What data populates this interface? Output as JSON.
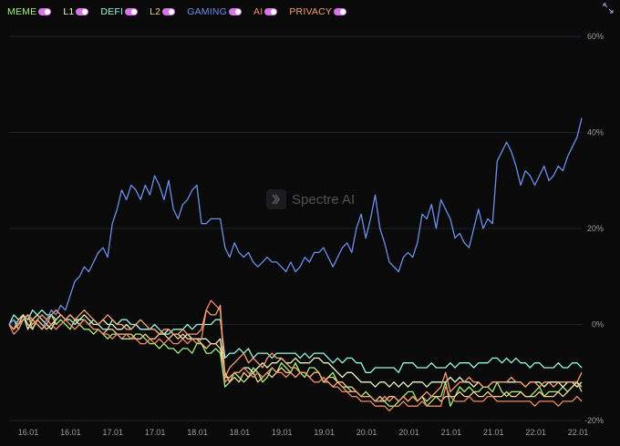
{
  "chart_data": {
    "type": "line",
    "x_ticks": [
      "16.01",
      "16.01",
      "17.01",
      "17.01",
      "18.01",
      "18.01",
      "19.01",
      "19.01",
      "20.01",
      "20.01",
      "21.01",
      "21.01",
      "22.01",
      "22.01"
    ],
    "y_ticks": [
      "60%",
      "40%",
      "20%",
      "0%",
      "-20%"
    ],
    "ylim": [
      -20,
      60
    ],
    "grid": "horizontal",
    "legend_position": "top-left",
    "series": [
      {
        "name": "MEME",
        "color": "#a3f07a",
        "toggle_on": true,
        "values": [
          0,
          1,
          -1,
          1,
          2,
          -1,
          1,
          2,
          1,
          2,
          0,
          1,
          0,
          -1,
          1,
          0,
          -1,
          -1,
          -2,
          -1,
          -2,
          -3,
          -2,
          -2,
          -3,
          -3,
          -3,
          -2,
          -2,
          -3,
          -4,
          -4,
          -5,
          -4,
          -5,
          -5,
          -6,
          -5,
          -5,
          -6,
          -4,
          -4,
          -6,
          -6,
          -5,
          -6,
          -13,
          -12,
          -10,
          -11,
          -12,
          -11,
          -9,
          -10,
          -12,
          -11,
          -9,
          -10,
          -8,
          -9,
          -10,
          -8,
          -10,
          -11,
          -9,
          -9,
          -10,
          -12,
          -11,
          -10,
          -12,
          -13,
          -13,
          -14,
          -14,
          -15,
          -14,
          -15,
          -16,
          -16,
          -16,
          -17,
          -17,
          -16,
          -15,
          -14,
          -14,
          -16,
          -15,
          -17,
          -16,
          -15,
          -15,
          -12,
          -17,
          -15,
          -13,
          -14,
          -13,
          -14,
          -14,
          -13,
          -13,
          -14,
          -12,
          -14,
          -15,
          -14,
          -14,
          -14,
          -15,
          -15,
          -14,
          -13,
          -15,
          -14,
          -14,
          -14,
          -13,
          -14,
          -13,
          -12,
          -13
        ]
      },
      {
        "name": "L1",
        "color": "#e8f7c6",
        "toggle_on": true,
        "values": [
          0,
          -1,
          0,
          2,
          -1,
          1,
          2,
          1,
          0,
          -1,
          1,
          2,
          1,
          2,
          1,
          1,
          2,
          1,
          0,
          0,
          1,
          0,
          0,
          -1,
          -1,
          0,
          -1,
          0,
          -1,
          -1,
          -1,
          -1,
          -2,
          -2,
          -1,
          -2,
          -2,
          -3,
          -2,
          -3,
          -3,
          -3,
          -3,
          -4,
          -4,
          -3,
          -11,
          -11,
          -10,
          -10,
          -9,
          -9,
          -10,
          -9,
          -8,
          -9,
          -8,
          -8,
          -7,
          -8,
          -8,
          -7,
          -8,
          -8,
          -8,
          -7,
          -7,
          -8,
          -8,
          -9,
          -10,
          -11,
          -10,
          -10,
          -11,
          -12,
          -12,
          -12,
          -13,
          -12,
          -12,
          -13,
          -12,
          -13,
          -12,
          -13,
          -12,
          -12,
          -12,
          -13,
          -12,
          -12,
          -12,
          -12,
          -11,
          -12,
          -11,
          -12,
          -12,
          -13,
          -12,
          -13,
          -13,
          -12,
          -12,
          -12,
          -12,
          -12,
          -12,
          -12,
          -13,
          -12,
          -12,
          -12,
          -13,
          -12,
          -12,
          -12,
          -13,
          -12,
          -12,
          -13,
          -12
        ]
      },
      {
        "name": "DEFI",
        "color": "#9af5dc",
        "toggle_on": true,
        "values": [
          0,
          2,
          1,
          2,
          1,
          3,
          2,
          3,
          2,
          2,
          1,
          2,
          1,
          1,
          0,
          1,
          1,
          0,
          1,
          0,
          -1,
          -1,
          1,
          0,
          1,
          1,
          0,
          0,
          -1,
          -1,
          -1,
          0,
          -1,
          -2,
          -2,
          -1,
          -1,
          -1,
          0,
          -1,
          0,
          0,
          0,
          0,
          1,
          1,
          -7,
          -6,
          -6,
          -5,
          -6,
          -5,
          -7,
          -6,
          -6,
          -6,
          -7,
          -6,
          -6,
          -6,
          -6,
          -6,
          -7,
          -6,
          -7,
          -6,
          -6,
          -6,
          -7,
          -8,
          -7,
          -8,
          -7,
          -7,
          -8,
          -8,
          -10,
          -10,
          -9,
          -9,
          -9,
          -9,
          -9,
          -10,
          -8,
          -8,
          -8,
          -9,
          -9,
          -9,
          -8,
          -9,
          -9,
          -9,
          -8,
          -9,
          -8,
          -8,
          -8,
          -9,
          -8,
          -8,
          -8,
          -7,
          -7,
          -8,
          -7,
          -8,
          -7,
          -8,
          -8,
          -9,
          -8,
          -8,
          -9,
          -9,
          -9,
          -8,
          -9,
          -9,
          -8,
          -8,
          -9
        ]
      },
      {
        "name": "L2",
        "color": "#f5cf94",
        "toggle_on": true,
        "values": [
          0,
          -1,
          1,
          2,
          0,
          -1,
          1,
          0,
          -1,
          0,
          1,
          2,
          1,
          2,
          1,
          0,
          1,
          0,
          -1,
          -1,
          -2,
          -1,
          -1,
          -2,
          -2,
          -2,
          -2,
          -3,
          -3,
          -2,
          -3,
          -3,
          -2,
          -2,
          -3,
          -2,
          -3,
          -2,
          -3,
          -3,
          -3,
          -4,
          -5,
          -4,
          -4,
          -5,
          -10,
          -12,
          -11,
          -12,
          -10,
          -11,
          -10,
          -12,
          -11,
          -10,
          -11,
          -10,
          -9,
          -10,
          -10,
          -11,
          -10,
          -10,
          -11,
          -10,
          -10,
          -12,
          -11,
          -11,
          -12,
          -12,
          -13,
          -13,
          -14,
          -15,
          -15,
          -15,
          -16,
          -15,
          -16,
          -15,
          -15,
          -16,
          -15,
          -16,
          -15,
          -16,
          -15,
          -16,
          -15,
          -15,
          -16,
          -15,
          -15,
          -15,
          -14,
          -15,
          -15,
          -14,
          -15,
          -15,
          -14,
          -15,
          -15,
          -15,
          -14,
          -15,
          -15,
          -14,
          -15,
          -15,
          -15,
          -14,
          -15,
          -15,
          -15,
          -14,
          -15,
          -14,
          -13,
          -12,
          -14
        ]
      },
      {
        "name": "GAMING",
        "color": "#6d8fea",
        "toggle_on": true,
        "values": [
          0,
          1,
          0,
          1,
          2,
          1,
          0,
          -1,
          1,
          3,
          2,
          4,
          3,
          6,
          9,
          10,
          12,
          11,
          13,
          15,
          16,
          14,
          21,
          24,
          28,
          26,
          29,
          28,
          26,
          29,
          27,
          31,
          29,
          26,
          30,
          24,
          22,
          25,
          26,
          28,
          29,
          21,
          21,
          22,
          22,
          22,
          16,
          14,
          17,
          15,
          14,
          15,
          13,
          12,
          13,
          14,
          13,
          13,
          12,
          11,
          13,
          11,
          12,
          14,
          13,
          15,
          15,
          16,
          14,
          12,
          14,
          16,
          17,
          15,
          20,
          23,
          18,
          22,
          27,
          20,
          17,
          13,
          12,
          11,
          14,
          15,
          14,
          17,
          23,
          22,
          25,
          20,
          26,
          24,
          22,
          18,
          19,
          17,
          16,
          20,
          24,
          20,
          22,
          21,
          34,
          36,
          38,
          36,
          33,
          29,
          32,
          31,
          29,
          31,
          33,
          30,
          31,
          33,
          32,
          35,
          37,
          39,
          43
        ]
      },
      {
        "name": "AI",
        "color": "#f08a6b",
        "toggle_on": true,
        "values": [
          0,
          -2,
          -1,
          1,
          2,
          0,
          1,
          2,
          1,
          0,
          -1,
          0,
          1,
          0,
          -1,
          0,
          1,
          0,
          -1,
          -1,
          -2,
          -2,
          -3,
          -2,
          -3,
          -2,
          -3,
          -3,
          -4,
          -4,
          -3,
          -4,
          -3,
          -4,
          -3,
          -4,
          -4,
          -3,
          -4,
          -3,
          -4,
          -3,
          3,
          5,
          4,
          3,
          -12,
          -11,
          -10,
          -10,
          -9,
          -10,
          -11,
          -10,
          -11,
          -10,
          -9,
          -10,
          -10,
          -11,
          -10,
          -11,
          -10,
          -10,
          -11,
          -12,
          -12,
          -11,
          -12,
          -13,
          -13,
          -14,
          -14,
          -15,
          -15,
          -16,
          -16,
          -16,
          -17,
          -17,
          -17,
          -18,
          -17,
          -17,
          -16,
          -17,
          -17,
          -17,
          -16,
          -17,
          -17,
          -17,
          -17,
          -13,
          -15,
          -16,
          -16,
          -16,
          -15,
          -16,
          -16,
          -16,
          -15,
          -15,
          -16,
          -16,
          -16,
          -16,
          -16,
          -16,
          -16,
          -16,
          -17,
          -16,
          -16,
          -16,
          -16,
          -17,
          -16,
          -16,
          -16,
          -15,
          -16
        ]
      },
      {
        "name": "PRIVACY",
        "color": "#f5a070",
        "toggle_on": true,
        "values": [
          0,
          -1,
          0,
          1,
          2,
          1,
          0,
          -1,
          0,
          2,
          3,
          2,
          1,
          2,
          1,
          2,
          3,
          2,
          1,
          0,
          1,
          2,
          1,
          0,
          0,
          -1,
          -1,
          0,
          1,
          0,
          -1,
          -1,
          -2,
          -1,
          -1,
          -2,
          -2,
          -1,
          -2,
          -2,
          -2,
          -1,
          3,
          2,
          2,
          4,
          -11,
          -9,
          -8,
          -7,
          -6,
          -8,
          -7,
          -8,
          -9,
          -7,
          -6,
          -7,
          -7,
          -8,
          -9,
          -9,
          -10,
          -10,
          -11,
          -10,
          -10,
          -12,
          -12,
          -13,
          -12,
          -13,
          -14,
          -14,
          -14,
          -15,
          -15,
          -15,
          -16,
          -16,
          -15,
          -16,
          -15,
          -16,
          -15,
          -16,
          -15,
          -16,
          -15,
          -14,
          -15,
          -14,
          -13,
          -10,
          -14,
          -13,
          -12,
          -12,
          -11,
          -12,
          -12,
          -13,
          -13,
          -12,
          -12,
          -12,
          -12,
          -11,
          -12,
          -12,
          -13,
          -12,
          -12,
          -13,
          -12,
          -12,
          -13,
          -12,
          -12,
          -12,
          -12,
          -12,
          -10
        ]
      }
    ]
  },
  "watermark": {
    "text": "Spectre AI",
    "icon": "spectre-logo-icon"
  },
  "controls": {
    "expand_icon": "expand-arrows-icon"
  },
  "colors": {
    "background": "#0a0a0b",
    "grid": "#1e2130",
    "axis_text": "#9a9aa2",
    "toggle_track": "#d774e6"
  }
}
